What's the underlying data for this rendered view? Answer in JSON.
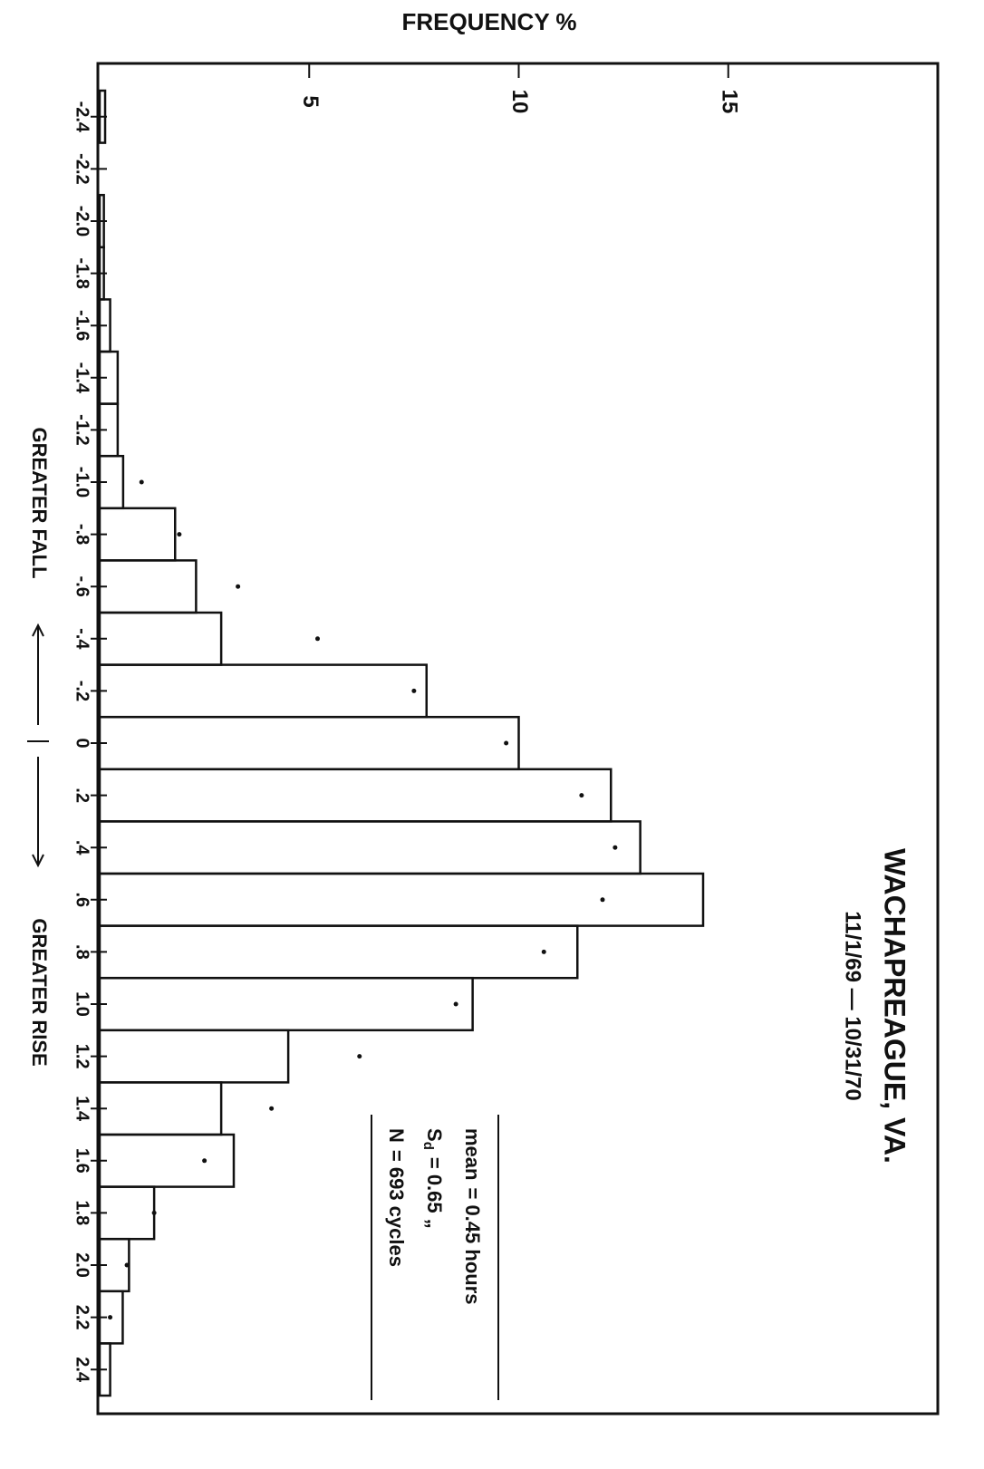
{
  "chart_data": {
    "type": "histogram",
    "title": "FREQUENCY %",
    "station": "WACHAPREAGUE, VA.",
    "period": "11/1/69 — 10/31/70",
    "stats": [
      {
        "symbol": "mean",
        "text": "= 0.45 hours"
      },
      {
        "symbol": "S",
        "subscript": "d",
        "text": "= 0.65 „"
      },
      {
        "symbol": "N",
        "text": "= 693 cycles"
      }
    ],
    "fall_label": "GREATER FALL",
    "rise_label": "GREATER RISE",
    "bins": [
      -2.5,
      -2.3,
      -2.1,
      -1.9,
      -1.7,
      -1.5,
      -1.3,
      -1.1,
      -0.9,
      -0.7,
      -0.5,
      -0.3,
      -0.1,
      0.1,
      0.3,
      0.5,
      0.7,
      0.9,
      1.1,
      1.3,
      1.5,
      1.7,
      1.9,
      2.1,
      2.3,
      2.5
    ],
    "values": [
      0.13,
      0,
      0.1,
      0.1,
      0.25,
      0.43,
      0.43,
      0.56,
      1.8,
      2.3,
      2.9,
      7.8,
      10.0,
      12.2,
      12.9,
      14.4,
      11.4,
      8.9,
      4.5,
      2.9,
      3.2,
      1.3,
      0.7,
      0.55,
      0.25
    ],
    "points": {
      "x": [
        -1.0,
        -0.8,
        -0.6,
        -0.4,
        -0.2,
        0,
        0.2,
        0.4,
        0.6,
        0.8,
        1.0,
        1.2,
        1.4,
        1.6,
        1.8,
        2.0,
        2.2
      ],
      "values": [
        1.0,
        1.9,
        3.3,
        5.2,
        7.5,
        9.7,
        11.5,
        12.3,
        12.0,
        10.6,
        8.5,
        6.2,
        4.1,
        2.5,
        1.3,
        0.65,
        0.25
      ]
    },
    "xlim": [
      -2.5,
      2.5
    ],
    "xticks": [
      -2.4,
      -2.2,
      {
        "value": -2.0,
        "label": "-2.0"
      },
      -1.8,
      -1.6,
      -1.4,
      -1.2,
      {
        "value": -1.0,
        "label": "-1.0"
      },
      {
        "value": -0.8,
        "label": "-.8"
      },
      {
        "value": -0.6,
        "label": "-.6"
      },
      {
        "value": -0.4,
        "label": "-.4"
      },
      {
        "value": -0.2,
        "label": "-.2"
      },
      0,
      {
        "value": 0.2,
        "label": ".2"
      },
      {
        "value": 0.4,
        "label": ".4"
      },
      {
        "value": 0.6,
        "label": ".6"
      },
      {
        "value": 0.8,
        "label": ".8"
      },
      {
        "value": 1.0,
        "label": "1.0"
      },
      1.2,
      1.4,
      1.6,
      1.8,
      {
        "value": 2.0,
        "label": "2.0"
      },
      2.2,
      2.4
    ],
    "ylim": [
      0,
      20
    ],
    "yticks": [
      5,
      10,
      15
    ]
  }
}
